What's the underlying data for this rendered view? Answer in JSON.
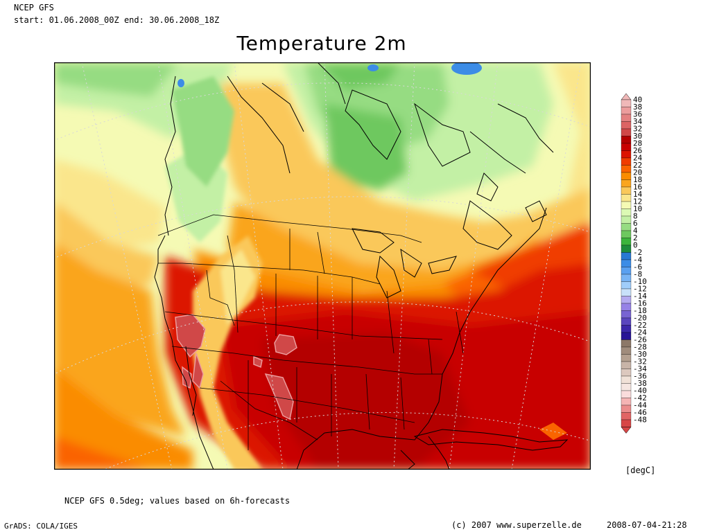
{
  "header": {
    "model": "NCEP GFS",
    "period": "start: 01.06.2008_00Z end: 30.06.2008_18Z"
  },
  "title": "Temperature 2m",
  "legend": {
    "unit": "[degC]",
    "entries": [
      {
        "label": "40",
        "color": "#f0b8b8"
      },
      {
        "label": "38",
        "color": "#ec9c9c"
      },
      {
        "label": "36",
        "color": "#e48080"
      },
      {
        "label": "34",
        "color": "#dc6464"
      },
      {
        "label": "32",
        "color": "#d04848"
      },
      {
        "label": "30",
        "color": "#b40000"
      },
      {
        "label": "28",
        "color": "#c80000"
      },
      {
        "label": "26",
        "color": "#dc1400"
      },
      {
        "label": "24",
        "color": "#f03c00"
      },
      {
        "label": "22",
        "color": "#fa6400"
      },
      {
        "label": "20",
        "color": "#fa8c00"
      },
      {
        "label": "18",
        "color": "#faa51e"
      },
      {
        "label": "16",
        "color": "#fac85a"
      },
      {
        "label": "14",
        "color": "#fae68c"
      },
      {
        "label": "12",
        "color": "#f5fab4"
      },
      {
        "label": "10",
        "color": "#dcfab4"
      },
      {
        "label": "8",
        "color": "#c3f0a5"
      },
      {
        "label": "6",
        "color": "#96dc82"
      },
      {
        "label": "4",
        "color": "#6ec85f"
      },
      {
        "label": "2",
        "color": "#3cb43c"
      },
      {
        "label": "0",
        "color": "#1e8c3c"
      },
      {
        "label": "-2",
        "color": "#2878d2"
      },
      {
        "label": "-4",
        "color": "#3c8ce6"
      },
      {
        "label": "-6",
        "color": "#5aa0f0"
      },
      {
        "label": "-8",
        "color": "#78b4f5"
      },
      {
        "label": "-10",
        "color": "#a0cdfa"
      },
      {
        "label": "-12",
        "color": "#c8e1fa"
      },
      {
        "label": "-14",
        "color": "#b4aaf0"
      },
      {
        "label": "-16",
        "color": "#9682e6"
      },
      {
        "label": "-18",
        "color": "#7864d2"
      },
      {
        "label": "-20",
        "color": "#5a46be"
      },
      {
        "label": "-22",
        "color": "#3c28aa"
      },
      {
        "label": "-24",
        "color": "#281496"
      },
      {
        "label": "-26",
        "color": "#8c7868"
      },
      {
        "label": "-28",
        "color": "#a08c7c"
      },
      {
        "label": "-30",
        "color": "#b4a090"
      },
      {
        "label": "-32",
        "color": "#c8b4a8"
      },
      {
        "label": "-34",
        "color": "#dcc8be"
      },
      {
        "label": "-36",
        "color": "#f0e1d7"
      },
      {
        "label": "-38",
        "color": "#f5e6e1"
      },
      {
        "label": "-40",
        "color": "#fadcdc"
      },
      {
        "label": "-42",
        "color": "#f5b4b4"
      },
      {
        "label": "-44",
        "color": "#eb8c8c"
      },
      {
        "label": "-46",
        "color": "#e16464"
      },
      {
        "label": "-48",
        "color": "#d74646"
      }
    ]
  },
  "footer": {
    "note": "NCEP GFS 0.5deg; values based on 6h-forecasts",
    "grads": "GrADS: COLA/IGES",
    "copyright": "(c) 2007 www.superzelle.de",
    "timestamp": "2008-07-04-21:28"
  }
}
